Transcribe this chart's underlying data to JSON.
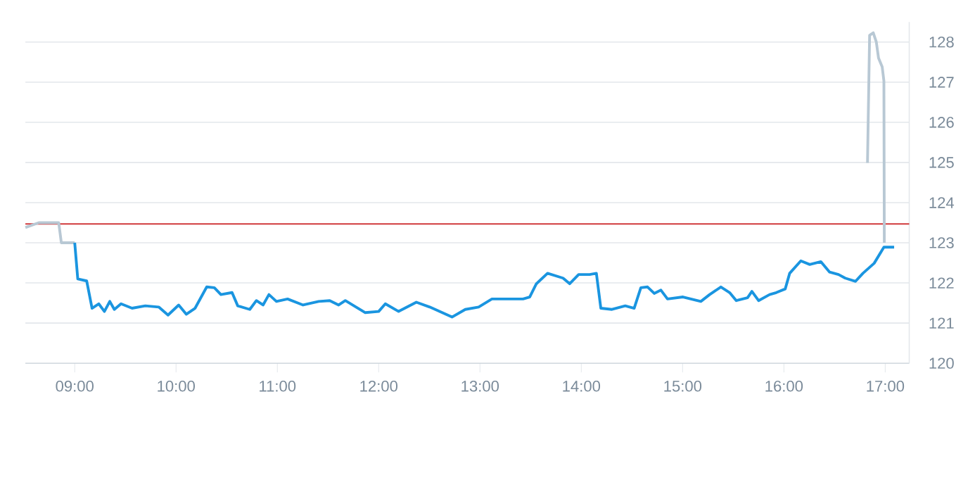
{
  "chart_data": {
    "type": "line",
    "xlim": [
      8.513,
      17.237
    ],
    "ylim": [
      120,
      128.5
    ],
    "xticks": [
      {
        "value": 9,
        "label": "09:00"
      },
      {
        "value": 10,
        "label": "10:00"
      },
      {
        "value": 11,
        "label": "11:00"
      },
      {
        "value": 12,
        "label": "12:00"
      },
      {
        "value": 13,
        "label": "13:00"
      },
      {
        "value": 14,
        "label": "14:00"
      },
      {
        "value": 15,
        "label": "15:00"
      },
      {
        "value": 16,
        "label": "16:00"
      },
      {
        "value": 17,
        "label": "17:00"
      }
    ],
    "yticks": [
      120,
      121,
      122,
      123,
      124,
      125,
      126,
      127,
      128
    ],
    "grid": "y",
    "marker": "none",
    "line_style": "solid",
    "ref_lines": [
      {
        "axis": "y",
        "value": 123.47,
        "color": "#d0393b"
      }
    ],
    "series": [
      {
        "color": "#b8c8d4",
        "x": [
          8.513,
          8.645,
          8.842,
          8.868,
          9.0
        ],
        "values": [
          123.38,
          123.5,
          123.5,
          123.0,
          123.0
        ]
      },
      {
        "color": "#1a95e0",
        "x": [
          9.0,
          9.03,
          9.118,
          9.171,
          9.237,
          9.293,
          9.346,
          9.391,
          9.457,
          9.566,
          9.697,
          9.829,
          9.921,
          10.026,
          10.101,
          10.188,
          10.303,
          10.378,
          10.443,
          10.553,
          10.609,
          10.728,
          10.793,
          10.859,
          10.917,
          10.991,
          11.101,
          11.254,
          11.408,
          11.517,
          11.605,
          11.671,
          11.868,
          12.0,
          12.066,
          12.197,
          12.372,
          12.504,
          12.724,
          12.855,
          12.987,
          13.118,
          13.425,
          13.491,
          13.557,
          13.667,
          13.82,
          13.886,
          13.974,
          14.083,
          14.149,
          14.193,
          14.303,
          14.434,
          14.522,
          14.588,
          14.654,
          14.72,
          14.786,
          14.851,
          15.004,
          15.18,
          15.267,
          15.378,
          15.464,
          15.53,
          15.641,
          15.684,
          15.75,
          15.859,
          15.925,
          16.013,
          16.057,
          16.167,
          16.255,
          16.364,
          16.451,
          16.539,
          16.605,
          16.707,
          16.78,
          16.891,
          16.987,
          17.088
        ],
        "values": [
          123.0,
          122.1,
          122.05,
          121.37,
          121.48,
          121.29,
          121.54,
          121.34,
          121.48,
          121.37,
          121.43,
          121.4,
          121.2,
          121.45,
          121.22,
          121.37,
          121.9,
          121.88,
          121.71,
          121.76,
          121.43,
          121.34,
          121.56,
          121.45,
          121.71,
          121.54,
          121.6,
          121.45,
          121.54,
          121.56,
          121.45,
          121.56,
          121.26,
          121.29,
          121.48,
          121.29,
          121.52,
          121.4,
          121.15,
          121.34,
          121.4,
          121.6,
          121.6,
          121.65,
          121.98,
          122.24,
          122.12,
          121.98,
          122.21,
          122.21,
          122.24,
          121.37,
          121.34,
          121.43,
          121.37,
          121.88,
          121.9,
          121.74,
          121.82,
          121.6,
          121.65,
          121.54,
          121.71,
          121.9,
          121.76,
          121.56,
          121.63,
          121.79,
          121.56,
          121.71,
          121.76,
          121.85,
          122.24,
          122.55,
          122.46,
          122.53,
          122.27,
          122.21,
          122.12,
          122.04,
          122.24,
          122.49,
          122.89,
          122.89
        ]
      },
      {
        "color": "#b8c8d4",
        "x": [
          16.825,
          16.846,
          16.882,
          16.912,
          16.934,
          16.97,
          16.987,
          16.991
        ],
        "values": [
          124.99,
          128.17,
          128.23,
          128.0,
          127.6,
          127.38,
          127.03,
          123.0
        ]
      }
    ]
  }
}
